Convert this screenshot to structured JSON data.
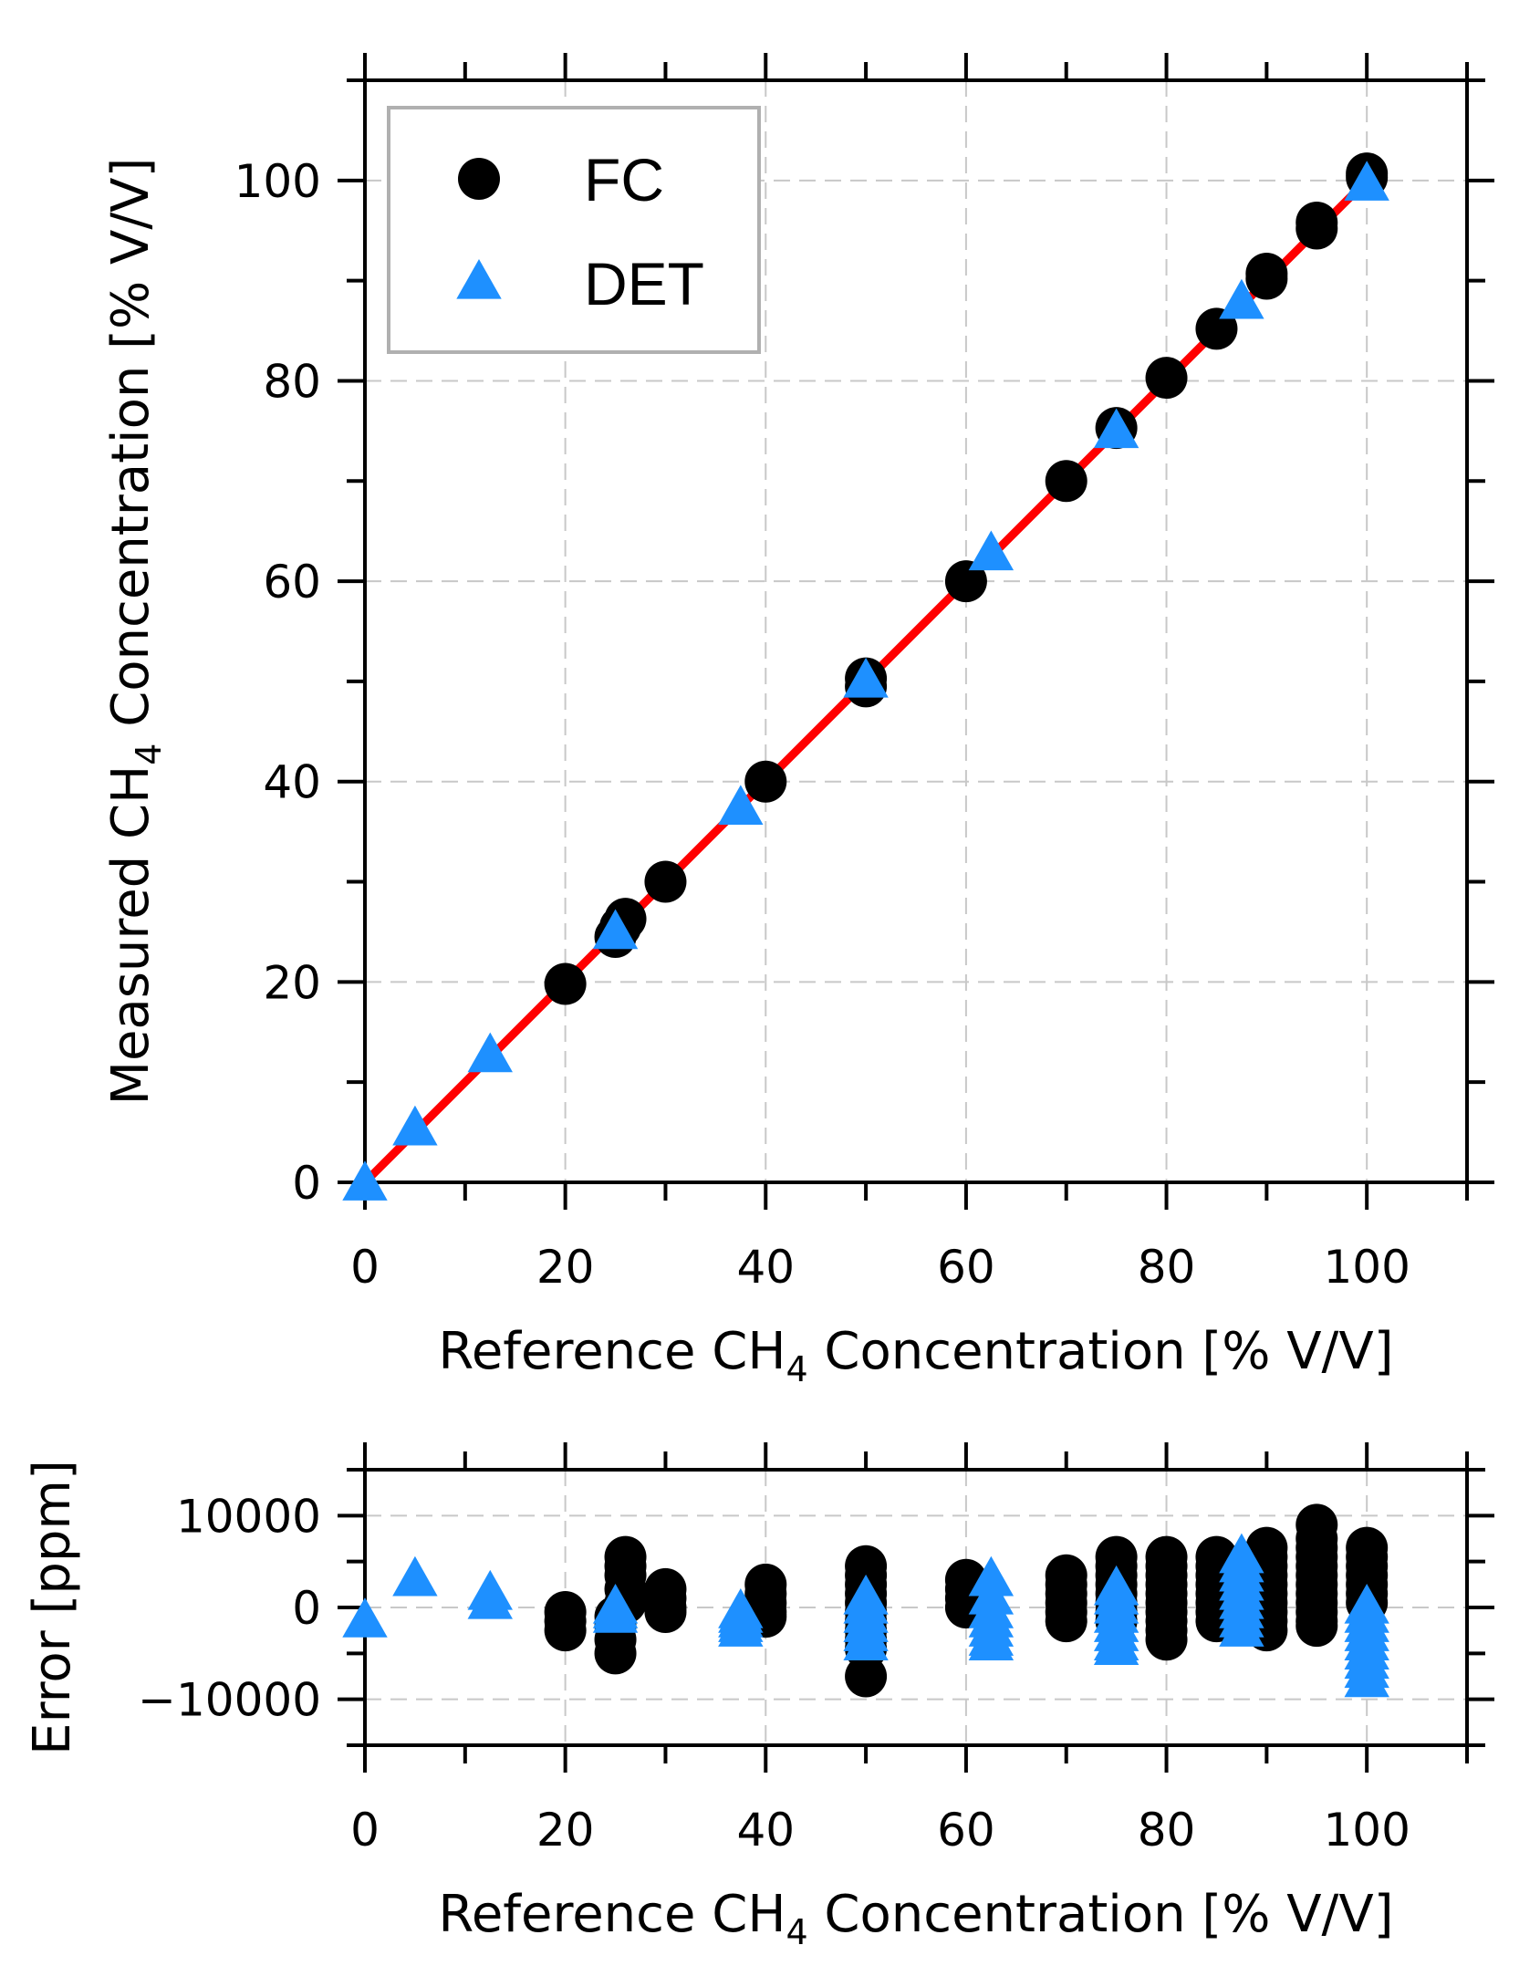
{
  "chart_data": [
    {
      "type": "scatter",
      "panel": "main",
      "xlabel_parts": [
        "Reference CH",
        "4",
        " Concentration [% V/V]"
      ],
      "ylabel_parts": [
        "Measured CH",
        "4",
        " Concentration [% V/V]"
      ],
      "xlim": [
        0,
        110
      ],
      "ylim": [
        0,
        110
      ],
      "x_ticks": [
        0,
        20,
        40,
        60,
        80,
        100
      ],
      "y_ticks": [
        0,
        20,
        40,
        60,
        80,
        100
      ],
      "x_tick_labels": [
        "0",
        "20",
        "40",
        "60",
        "80",
        "100"
      ],
      "y_tick_labels": [
        "0",
        "20",
        "40",
        "60",
        "80",
        "100"
      ],
      "grid": true,
      "legend_position": "top-left",
      "fit_line": {
        "x": [
          0,
          100
        ],
        "y": [
          0,
          100
        ],
        "color": "#ff0000"
      },
      "series": [
        {
          "name": "FC",
          "marker": "circle",
          "color": "#000000",
          "points": [
            [
              20,
              19.8
            ],
            [
              25,
              24.5
            ],
            [
              25.5,
              25.5
            ],
            [
              26,
              26.3
            ],
            [
              30,
              30
            ],
            [
              40,
              40
            ],
            [
              50,
              49.5
            ],
            [
              50,
              50.3
            ],
            [
              60,
              60
            ],
            [
              70,
              70
            ],
            [
              75,
              75.3
            ],
            [
              80,
              80.3
            ],
            [
              85,
              85.2
            ],
            [
              90,
              90.2
            ],
            [
              90,
              90.7
            ],
            [
              95,
              95.2
            ],
            [
              95,
              95.8
            ],
            [
              100,
              100.3
            ],
            [
              100,
              100.7
            ]
          ]
        },
        {
          "name": "DET",
          "marker": "triangle",
          "color": "#1e90ff",
          "points": [
            [
              0,
              -0.2
            ],
            [
              5,
              5.3
            ],
            [
              12.5,
              12.6
            ],
            [
              25,
              24.9
            ],
            [
              37.5,
              37.3
            ],
            [
              50,
              50
            ],
            [
              62.5,
              62.7
            ],
            [
              75,
              74.9
            ],
            [
              87.5,
              87.8
            ],
            [
              100,
              99.6
            ]
          ]
        }
      ]
    },
    {
      "type": "scatter",
      "panel": "residuals",
      "xlabel_parts": [
        "Reference CH",
        "4",
        " Concentration [% V/V]"
      ],
      "ylabel": "Error [ppm]",
      "xlim": [
        0,
        110
      ],
      "ylim": [
        -15000,
        15000
      ],
      "x_ticks": [
        0,
        20,
        40,
        60,
        80,
        100
      ],
      "y_ticks": [
        -10000,
        0,
        10000
      ],
      "x_tick_labels": [
        "0",
        "20",
        "40",
        "60",
        "80",
        "100"
      ],
      "y_tick_labels": [
        "−10000",
        "0",
        "10000"
      ],
      "grid": true,
      "series": [
        {
          "name": "FC",
          "marker": "circle",
          "color": "#000000",
          "points": [
            [
              20,
              -2500
            ],
            [
              20,
              -1500
            ],
            [
              20,
              -500
            ],
            [
              25,
              -5000
            ],
            [
              25,
              -3500
            ],
            [
              25,
              -2000
            ],
            [
              25,
              -1000
            ],
            [
              26,
              5500
            ],
            [
              26,
              4500
            ],
            [
              26,
              3500
            ],
            [
              26,
              2000
            ],
            [
              26,
              500
            ],
            [
              30,
              2000
            ],
            [
              30,
              1000
            ],
            [
              30,
              0
            ],
            [
              30,
              -500
            ],
            [
              40,
              2500
            ],
            [
              40,
              1500
            ],
            [
              40,
              500
            ],
            [
              40,
              -500
            ],
            [
              40,
              -1000
            ],
            [
              50,
              4500
            ],
            [
              50,
              3500
            ],
            [
              50,
              2500
            ],
            [
              50,
              1500
            ],
            [
              50,
              500
            ],
            [
              50,
              -500
            ],
            [
              50,
              -1500
            ],
            [
              50,
              -2500
            ],
            [
              50,
              -3500
            ],
            [
              50,
              -4500
            ],
            [
              50,
              -7500
            ],
            [
              60,
              3000
            ],
            [
              60,
              2000
            ],
            [
              60,
              1000
            ],
            [
              60,
              0
            ],
            [
              70,
              3500
            ],
            [
              70,
              2500
            ],
            [
              70,
              1500
            ],
            [
              70,
              500
            ],
            [
              70,
              -500
            ],
            [
              70,
              -1500
            ],
            [
              75,
              5500
            ],
            [
              75,
              4500
            ],
            [
              75,
              3500
            ],
            [
              75,
              2500
            ],
            [
              75,
              1500
            ],
            [
              75,
              500
            ],
            [
              75,
              -500
            ],
            [
              75,
              -1500
            ],
            [
              80,
              5500
            ],
            [
              80,
              4500
            ],
            [
              80,
              3500
            ],
            [
              80,
              2500
            ],
            [
              80,
              1500
            ],
            [
              80,
              500
            ],
            [
              80,
              -500
            ],
            [
              80,
              -1500
            ],
            [
              80,
              -2500
            ],
            [
              80,
              -3500
            ],
            [
              85,
              5500
            ],
            [
              85,
              4500
            ],
            [
              85,
              3500
            ],
            [
              85,
              2500
            ],
            [
              85,
              1500
            ],
            [
              85,
              500
            ],
            [
              85,
              -500
            ],
            [
              85,
              -1500
            ],
            [
              90,
              6500
            ],
            [
              90,
              5500
            ],
            [
              90,
              4500
            ],
            [
              90,
              3500
            ],
            [
              90,
              2500
            ],
            [
              90,
              1500
            ],
            [
              90,
              500
            ],
            [
              90,
              -500
            ],
            [
              90,
              -1500
            ],
            [
              90,
              -2500
            ],
            [
              95,
              9000
            ],
            [
              95,
              7500
            ],
            [
              95,
              6500
            ],
            [
              95,
              5500
            ],
            [
              95,
              4500
            ],
            [
              95,
              3500
            ],
            [
              95,
              2500
            ],
            [
              95,
              1500
            ],
            [
              95,
              500
            ],
            [
              95,
              -500
            ],
            [
              95,
              -1500
            ],
            [
              95,
              -2000
            ],
            [
              100,
              6500
            ],
            [
              100,
              5500
            ],
            [
              100,
              4500
            ],
            [
              100,
              3500
            ],
            [
              100,
              2500
            ],
            [
              100,
              1500
            ],
            [
              100,
              500
            ]
          ]
        },
        {
          "name": "DET",
          "marker": "triangle",
          "color": "#1e90ff",
          "points": [
            [
              0,
              -1500
            ],
            [
              5,
              3000
            ],
            [
              12.5,
              1500
            ],
            [
              12.5,
              500
            ],
            [
              25,
              0
            ],
            [
              25,
              -500
            ],
            [
              25,
              -1000
            ],
            [
              37.5,
              -500
            ],
            [
              37.5,
              -1000
            ],
            [
              37.5,
              -1500
            ],
            [
              37.5,
              -2000
            ],
            [
              37.5,
              -2500
            ],
            [
              50,
              1000
            ],
            [
              50,
              0
            ],
            [
              50,
              -1000
            ],
            [
              50,
              -2000
            ],
            [
              50,
              -3000
            ],
            [
              50,
              -4000
            ],
            [
              62.5,
              3000
            ],
            [
              62.5,
              1000
            ],
            [
              62.5,
              -500
            ],
            [
              62.5,
              -1500
            ],
            [
              62.5,
              -2500
            ],
            [
              62.5,
              -3500
            ],
            [
              62.5,
              -4000
            ],
            [
              75,
              2000
            ],
            [
              75,
              1000
            ],
            [
              75,
              0
            ],
            [
              75,
              -1000
            ],
            [
              75,
              -2000
            ],
            [
              75,
              -3000
            ],
            [
              75,
              -4000
            ],
            [
              75,
              -4500
            ],
            [
              87.5,
              5500
            ],
            [
              87.5,
              4500
            ],
            [
              87.5,
              3500
            ],
            [
              87.5,
              2500
            ],
            [
              87.5,
              1500
            ],
            [
              87.5,
              500
            ],
            [
              87.5,
              -500
            ],
            [
              87.5,
              -1500
            ],
            [
              87.5,
              -2500
            ],
            [
              100,
              0
            ],
            [
              100,
              -1000
            ],
            [
              100,
              -2000
            ],
            [
              100,
              -3000
            ],
            [
              100,
              -4000
            ],
            [
              100,
              -5000
            ],
            [
              100,
              -6000
            ],
            [
              100,
              -7000
            ],
            [
              100,
              -8000
            ]
          ]
        }
      ]
    }
  ]
}
